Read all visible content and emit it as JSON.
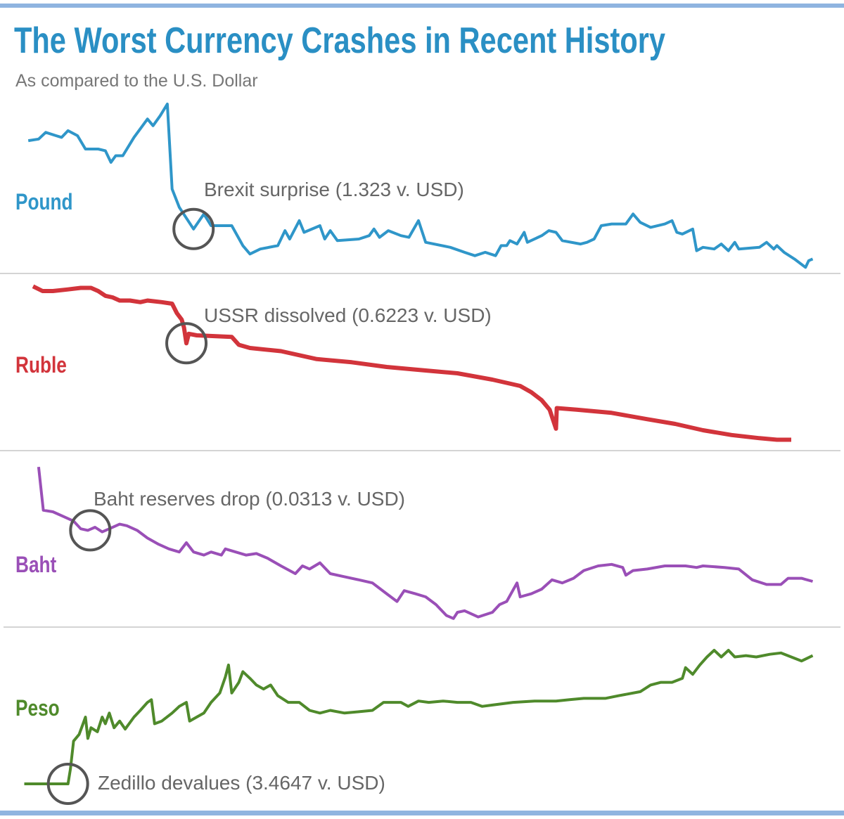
{
  "chart_data": {
    "type": "line",
    "title": "The Worst Currency Crashes in Recent History",
    "subtitle": "As compared to the U.S. Dollar",
    "axes_visible": false,
    "grid": false,
    "legend": "none",
    "layout": "four stacked panels, one per currency, labeled at left",
    "value_scale": "relative level within each panel (0 = panel low, 100 = panel high); no axis values printed",
    "title_color": "#2a8fc4",
    "rule_color": "#8fb4e0",
    "annotation_color": "#555555",
    "series": [
      {
        "name": "Pound",
        "color": "#2f96c9",
        "annotation": "Brexit surprise (1.323 v. USD)",
        "annotation_x": 21.7,
        "x": [
          0.9,
          2.2,
          3.1,
          4.4,
          5.1,
          5.9,
          7.1,
          8.1,
          9.7,
          10.6,
          11.3,
          11.9,
          12.8,
          14.2,
          15.9,
          16.6,
          17.5,
          18.4,
          19.0,
          19.9,
          21.7,
          23.0,
          23.9,
          26.5,
          27.9,
          28.8,
          30.1,
          32.3,
          33.2,
          33.8,
          35.0,
          35.6,
          37.6,
          38.2,
          38.9,
          39.8,
          42.5,
          43.8,
          44.4,
          45.1,
          46.2,
          47.8,
          48.8,
          50.0,
          50.9,
          54.0,
          55.8,
          57.1,
          58.4,
          59.7,
          60.4,
          61.1,
          61.5,
          62.4,
          63.3,
          63.7,
          65.5,
          66.4,
          67.3,
          68.1,
          70.4,
          71.2,
          72.1,
          73.0,
          74.3,
          76.1,
          77.0,
          77.9,
          79.2,
          81.0,
          81.9,
          82.5,
          83.2,
          84.5,
          85.0,
          85.8,
          87.2,
          88.1,
          89.0,
          89.8,
          90.3,
          92.9,
          93.8,
          94.7,
          95.1,
          96.0,
          97.3,
          98.7,
          99.1,
          99.6
        ],
        "y": [
          78,
          79,
          83,
          81,
          80,
          84,
          81,
          73,
          73,
          72,
          65,
          69,
          69,
          80,
          91,
          87,
          93,
          100,
          49,
          38,
          25,
          34,
          27,
          27,
          15,
          10,
          13,
          15,
          24,
          19,
          30,
          23,
          27,
          19,
          24,
          18,
          19,
          21,
          25,
          20,
          24,
          21,
          20,
          30,
          17,
          14,
          11,
          9,
          11,
          9,
          15,
          15,
          18,
          16,
          23,
          17,
          21,
          24,
          23,
          18,
          16,
          17,
          19,
          27,
          28,
          28,
          34,
          29,
          26,
          28,
          30,
          23,
          22,
          25,
          12,
          14,
          13,
          16,
          12,
          17,
          13,
          14,
          17,
          13,
          15,
          11,
          7,
          2,
          6,
          7
        ]
      },
      {
        "name": "Ruble",
        "color": "#d2343b",
        "annotation": "USSR dissolved (0.6223 v. USD)",
        "annotation_x": 20.8,
        "x": [
          1.5,
          2.7,
          4.0,
          5.8,
          7.5,
          8.8,
          9.7,
          10.6,
          11.5,
          12.4,
          13.7,
          15.0,
          15.9,
          17.7,
          19.0,
          19.6,
          20.2,
          20.5,
          20.8,
          21.1,
          22.1,
          26.5,
          27.4,
          28.8,
          32.7,
          37.2,
          41.6,
          46.0,
          50.4,
          54.9,
          59.3,
          62.8,
          64.2,
          65.5,
          66.5,
          67.3,
          67.4,
          69.9,
          74.3,
          78.8,
          82.3,
          85.8,
          89.4,
          92.9,
          95.1,
          96.9
        ],
        "y": [
          99,
          96,
          96,
          97,
          98,
          98,
          96,
          93,
          92,
          90,
          90,
          89,
          90,
          89,
          88,
          82,
          78,
          73,
          63,
          69,
          68,
          67,
          62,
          60,
          58,
          53,
          51,
          48,
          46,
          44,
          40,
          36,
          32,
          27,
          21,
          9,
          22,
          21,
          19,
          15,
          12,
          8,
          5,
          3,
          2,
          2
        ]
      },
      {
        "name": "Baht",
        "color": "#9a4fb7",
        "annotation": "Baht reserves drop (0.0313 v. USD)",
        "annotation_x": 8.7,
        "x": [
          2.2,
          2.8,
          4.0,
          5.3,
          6.6,
          7.5,
          8.4,
          9.3,
          10.2,
          11.1,
          12.4,
          13.3,
          14.6,
          15.9,
          17.3,
          18.6,
          19.9,
          20.8,
          21.7,
          23.0,
          23.9,
          25.2,
          25.7,
          27.0,
          28.3,
          29.6,
          31.0,
          32.7,
          34.5,
          35.4,
          36.3,
          37.6,
          38.9,
          40.7,
          42.5,
          44.2,
          46.0,
          47.3,
          48.2,
          49.6,
          50.9,
          52.2,
          53.5,
          54.4,
          54.9,
          55.8,
          57.5,
          59.3,
          60.2,
          61.1,
          62.4,
          62.8,
          64.2,
          65.5,
          66.8,
          68.1,
          69.5,
          70.8,
          72.6,
          74.3,
          75.7,
          76.1,
          77.0,
          78.8,
          81.0,
          83.6,
          85.0,
          85.8,
          88.5,
          90.3,
          92.0,
          93.8,
          95.6,
          96.5,
          98.2,
          99.6
        ],
        "y": [
          99,
          71,
          70,
          67,
          64,
          59,
          58,
          60,
          57,
          59,
          62,
          61,
          58,
          53,
          49,
          46,
          44,
          50,
          44,
          42,
          44,
          42,
          46,
          44,
          42,
          43,
          40,
          35,
          30,
          35,
          33,
          37,
          30,
          28,
          26,
          24,
          17,
          12,
          19,
          17,
          15,
          10,
          3,
          1,
          5,
          6,
          2,
          5,
          10,
          12,
          24,
          15,
          17,
          20,
          26,
          24,
          27,
          32,
          35,
          36,
          34,
          29,
          32,
          33,
          35,
          35,
          34,
          35,
          34,
          33,
          26,
          23,
          23,
          27,
          27,
          25
        ]
      },
      {
        "name": "Peso",
        "color": "#4f8a2b",
        "annotation": "Zedillo devalues (3.4647 v. USD)",
        "annotation_x": 5.9,
        "x": [
          0.4,
          5.9,
          6.2,
          6.6,
          7.3,
          7.8,
          8.1,
          8.4,
          8.8,
          9.6,
          10.2,
          10.6,
          11.1,
          11.7,
          12.4,
          13.1,
          14.2,
          15.0,
          15.9,
          16.4,
          16.8,
          17.7,
          19.0,
          19.9,
          20.8,
          21.2,
          22.1,
          23.0,
          23.9,
          25.0,
          25.7,
          26.1,
          26.5,
          27.4,
          27.9,
          28.8,
          29.6,
          30.5,
          31.4,
          32.3,
          33.6,
          35.0,
          36.3,
          37.6,
          38.9,
          40.7,
          42.5,
          44.2,
          45.6,
          47.8,
          48.7,
          50.0,
          51.3,
          53.1,
          54.9,
          56.6,
          58.0,
          59.3,
          61.9,
          64.6,
          67.3,
          69.0,
          70.8,
          73.5,
          75.2,
          77.9,
          79.2,
          80.5,
          81.9,
          83.2,
          83.6,
          84.5,
          85.4,
          86.3,
          87.2,
          88.1,
          89.0,
          89.8,
          91.2,
          92.5,
          94.2,
          95.6,
          96.9,
          98.2,
          99.6
        ],
        "y": [
          0,
          0,
          11,
          32,
          37,
          45,
          50,
          34,
          42,
          39,
          50,
          45,
          53,
          42,
          47,
          41,
          50,
          55,
          61,
          63,
          45,
          47,
          53,
          58,
          61,
          47,
          50,
          53,
          61,
          68,
          80,
          89,
          68,
          76,
          84,
          79,
          74,
          71,
          74,
          66,
          61,
          61,
          55,
          53,
          55,
          53,
          54,
          55,
          61,
          61,
          58,
          62,
          61,
          62,
          61,
          61,
          58,
          59,
          61,
          62,
          62,
          63,
          64,
          64,
          66,
          69,
          74,
          76,
          76,
          79,
          87,
          82,
          89,
          95,
          100,
          95,
          100,
          95,
          96,
          95,
          97,
          98,
          95,
          92,
          96
        ]
      }
    ]
  }
}
